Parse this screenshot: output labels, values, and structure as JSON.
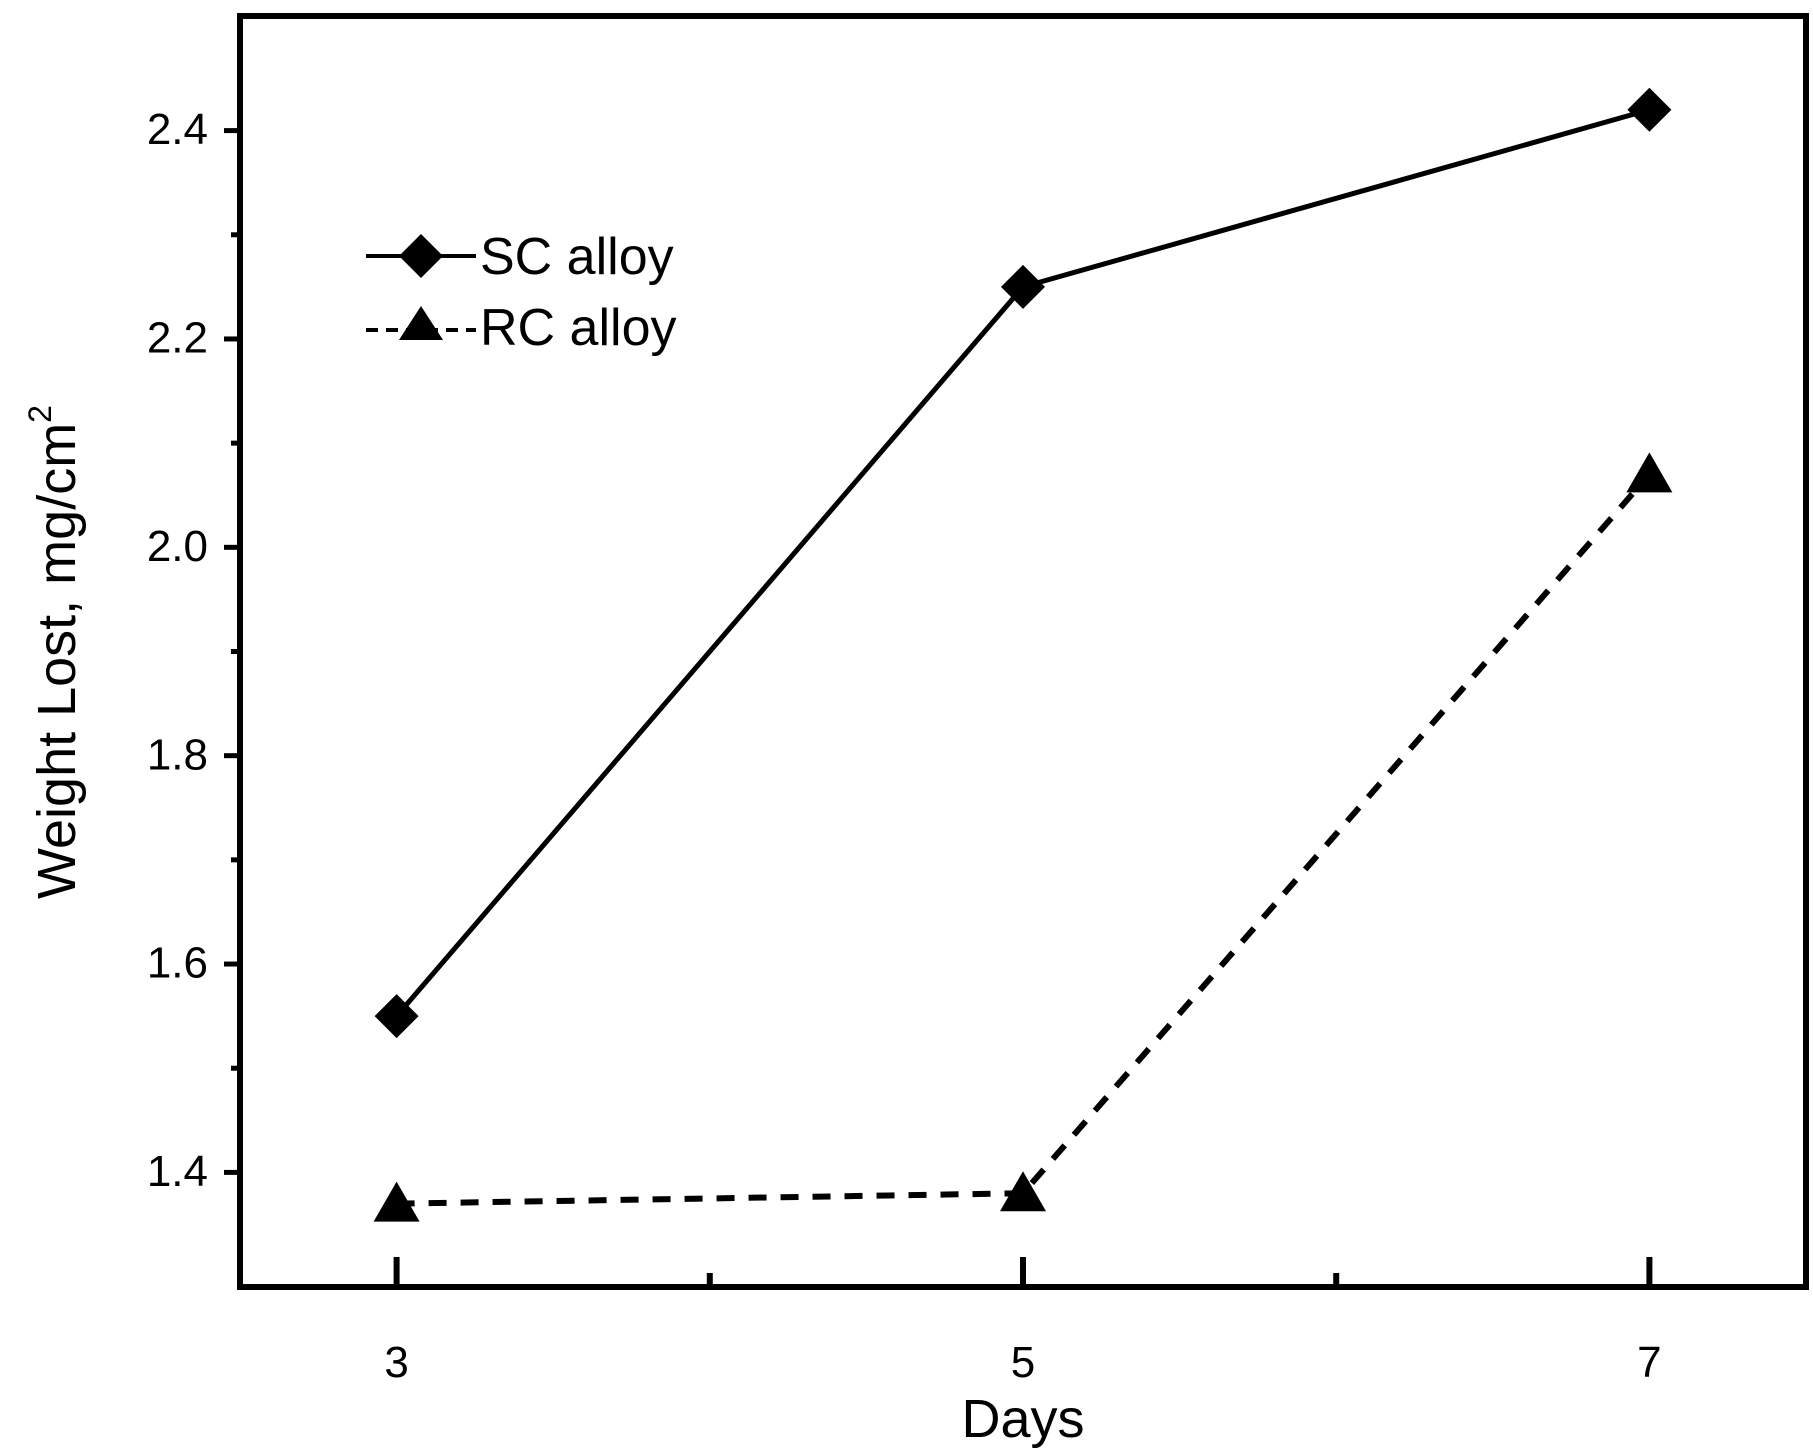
{
  "chart_data": {
    "type": "line",
    "title": "",
    "xlabel": "Days",
    "ylabel": "Weight Lost, mg/cm",
    "ylabel_superscript": "2",
    "x": [
      3,
      5,
      7
    ],
    "x_tick_labels": [
      "3",
      "5",
      "7"
    ],
    "x_minor_ticks": [
      4,
      6
    ],
    "xlim": [
      2.5,
      7.5
    ],
    "ylim": [
      1.29,
      2.51
    ],
    "y_major_ticks": [
      1.4,
      1.6,
      1.8,
      2.0,
      2.2,
      2.4
    ],
    "y_tick_labels": [
      "1.4",
      "1.6",
      "1.8",
      "2.0",
      "2.2",
      "2.4"
    ],
    "y_minor_ticks": [
      1.5,
      1.7,
      1.9,
      2.1,
      2.3
    ],
    "grid": false,
    "legend_position": "top-left",
    "series": [
      {
        "name": "SC alloy",
        "legend_label": "SC alloy",
        "values": [
          1.55,
          2.25,
          2.42
        ],
        "line_style": "solid",
        "marker": "diamond",
        "color": "#000000"
      },
      {
        "name": "RC alloy",
        "legend_label": "RC alloy",
        "values": [
          1.37,
          1.38,
          2.07
        ],
        "line_style": "dashed",
        "marker": "triangle",
        "color": "#000000"
      }
    ]
  }
}
